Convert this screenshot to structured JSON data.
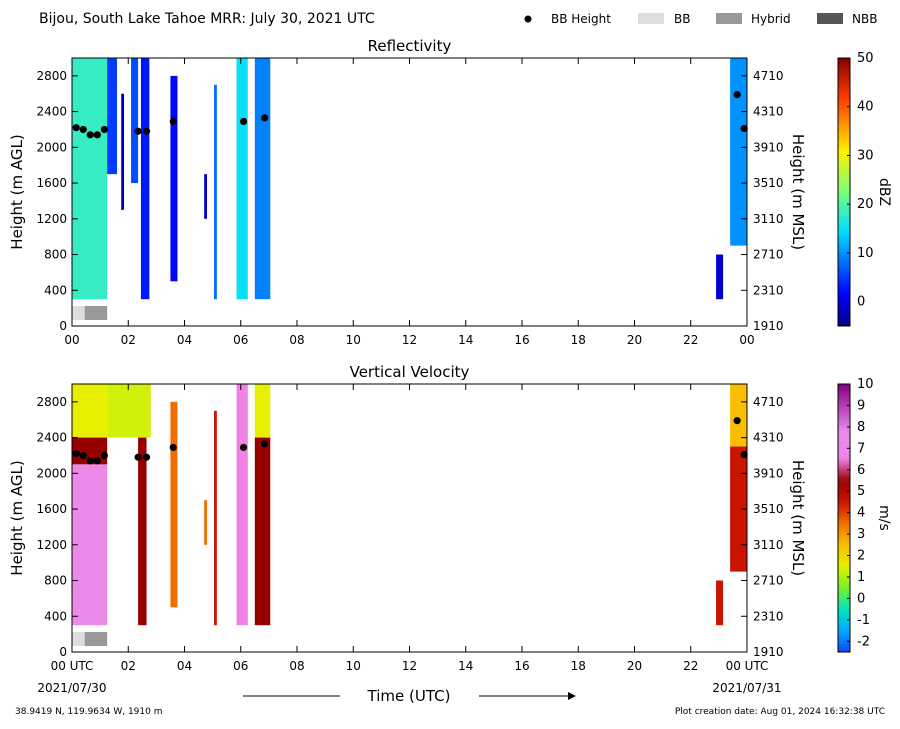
{
  "header": {
    "title": "Bijou, South Lake Tahoe MRR:  July 30, 2021 UTC",
    "legend": [
      {
        "label": "BB Height",
        "marker": "dot",
        "color": "#000000"
      },
      {
        "label": "BB",
        "marker": "box",
        "color": "#dddddd"
      },
      {
        "label": "Hybrid",
        "marker": "box",
        "color": "#999999"
      },
      {
        "label": "NBB",
        "marker": "box",
        "color": "#555555"
      }
    ]
  },
  "footer": {
    "location": "38.9419 N, 119.9634 W, 1910 m",
    "creation": "Plot creation date: Aug 01, 2024 16:32:38 UTC",
    "xlabel": "Time (UTC)",
    "start_date": "2021/07/30",
    "end_date": "2021/07/31"
  },
  "chart_data": [
    {
      "type": "heatmap",
      "title": "Reflectivity",
      "ylabel": "Height (m AGL)",
      "ylabel_right": "Height (m MSL)",
      "ylim": [
        0,
        3000
      ],
      "xlim": [
        0,
        24
      ],
      "x_ticks": [
        "00",
        "02",
        "04",
        "06",
        "08",
        "10",
        "12",
        "14",
        "16",
        "18",
        "20",
        "22",
        "00"
      ],
      "y_ticks": [
        0,
        400,
        800,
        1200,
        1600,
        2000,
        2400,
        2800
      ],
      "y_ticks_right": [
        "1910",
        "2310",
        "2710",
        "3110",
        "3510",
        "3910",
        "4310",
        "4710"
      ],
      "colorbar": {
        "label": "dBZ",
        "range": [
          -5,
          50
        ],
        "ticks": [
          "0",
          "10",
          "20",
          "30",
          "40",
          "50"
        ],
        "tick_values": [
          0,
          10,
          20,
          30,
          40,
          50
        ],
        "colormap": "jet"
      },
      "bb_height": [
        [
          0.15,
          2220
        ],
        [
          0.4,
          2200
        ],
        [
          0.65,
          2140
        ],
        [
          0.9,
          2140
        ],
        [
          1.15,
          2200
        ],
        [
          2.35,
          2180
        ],
        [
          2.65,
          2180
        ],
        [
          3.6,
          2290
        ],
        [
          6.1,
          2290
        ],
        [
          6.85,
          2330
        ],
        [
          23.65,
          2590
        ],
        [
          23.9,
          2210
        ]
      ],
      "bb_type": [
        {
          "start": 0,
          "end": 0.45,
          "type": "BB"
        },
        {
          "start": 0.45,
          "end": 1.25,
          "type": "Hybrid"
        }
      ],
      "echo_columns": [
        {
          "x": 0.0,
          "x2": 1.25,
          "y0": 300,
          "y1": 3000,
          "value": 18
        },
        {
          "x": 1.25,
          "x2": 1.6,
          "y0": 1700,
          "y1": 3000,
          "value": 5
        },
        {
          "x": 1.75,
          "x2": 1.85,
          "y0": 1300,
          "y1": 2600,
          "value": -2
        },
        {
          "x": 2.1,
          "x2": 2.35,
          "y0": 1600,
          "y1": 3000,
          "value": 6
        },
        {
          "x": 2.45,
          "x2": 2.75,
          "y0": 300,
          "y1": 3000,
          "value": 3
        },
        {
          "x": 3.5,
          "x2": 3.75,
          "y0": 500,
          "y1": 2800,
          "value": 2
        },
        {
          "x": 4.7,
          "x2": 4.8,
          "y0": 1200,
          "y1": 1700,
          "value": -1
        },
        {
          "x": 5.05,
          "x2": 5.15,
          "y0": 300,
          "y1": 2700,
          "value": 8
        },
        {
          "x": 5.85,
          "x2": 6.25,
          "y0": 300,
          "y1": 3000,
          "value": 15
        },
        {
          "x": 6.5,
          "x2": 7.05,
          "y0": 300,
          "y1": 3000,
          "value": 9
        },
        {
          "x": 22.9,
          "x2": 23.15,
          "y0": 300,
          "y1": 800,
          "value": -1
        },
        {
          "x": 23.4,
          "x2": 24.0,
          "y0": 900,
          "y1": 3000,
          "value": 10
        }
      ]
    },
    {
      "type": "heatmap",
      "title": "Vertical Velocity",
      "ylabel": "Height (m AGL)",
      "ylabel_right": "Height (m MSL)",
      "ylim": [
        0,
        3000
      ],
      "xlim": [
        0,
        24
      ],
      "x_ticks": [
        "00 UTC",
        "02",
        "04",
        "06",
        "08",
        "10",
        "12",
        "14",
        "16",
        "18",
        "20",
        "22",
        "00 UTC"
      ],
      "y_ticks": [
        0,
        400,
        800,
        1200,
        1600,
        2000,
        2400,
        2800
      ],
      "y_ticks_right": [
        "1910",
        "2310",
        "2710",
        "3110",
        "3510",
        "3910",
        "4310",
        "4710"
      ],
      "colorbar": {
        "label": "m/s",
        "range": [
          -2.5,
          10
        ],
        "ticks": [
          "-2",
          "-1",
          "0",
          "1",
          "2",
          "3",
          "4",
          "5",
          "6",
          "7",
          "8",
          "9",
          "10"
        ],
        "tick_values": [
          -2,
          -1,
          0,
          1,
          2,
          3,
          4,
          5,
          6,
          7,
          8,
          9,
          10
        ],
        "colormap": "velocity"
      },
      "bb_height": [
        [
          0.15,
          2220
        ],
        [
          0.4,
          2200
        ],
        [
          0.65,
          2140
        ],
        [
          0.9,
          2140
        ],
        [
          1.15,
          2200
        ],
        [
          2.35,
          2180
        ],
        [
          2.65,
          2180
        ],
        [
          3.6,
          2290
        ],
        [
          6.1,
          2290
        ],
        [
          6.85,
          2330
        ],
        [
          23.65,
          2590
        ],
        [
          23.9,
          2210
        ]
      ],
      "bb_type": [
        {
          "start": 0,
          "end": 0.45,
          "type": "BB"
        },
        {
          "start": 0.45,
          "end": 1.25,
          "type": "Hybrid"
        }
      ],
      "echo_columns": [
        {
          "x": 0.0,
          "x2": 1.25,
          "y0": 2400,
          "y1": 3000,
          "value": 1.5
        },
        {
          "x": 0.0,
          "x2": 1.25,
          "y0": 2100,
          "y1": 2400,
          "value": 5.5
        },
        {
          "x": 0.0,
          "x2": 1.25,
          "y0": 300,
          "y1": 2100,
          "value": 7.5
        },
        {
          "x": 1.25,
          "x2": 2.8,
          "y0": 2400,
          "y1": 3000,
          "value": 1.3
        },
        {
          "x": 2.35,
          "x2": 2.65,
          "y0": 300,
          "y1": 2400,
          "value": 5.5
        },
        {
          "x": 3.5,
          "x2": 3.75,
          "y0": 500,
          "y1": 2800,
          "value": 3.5
        },
        {
          "x": 4.7,
          "x2": 4.8,
          "y0": 1200,
          "y1": 1700,
          "value": 3.5
        },
        {
          "x": 5.05,
          "x2": 5.15,
          "y0": 300,
          "y1": 2700,
          "value": 4.5
        },
        {
          "x": 5.85,
          "x2": 6.25,
          "y0": 300,
          "y1": 3000,
          "value": 6.5
        },
        {
          "x": 6.5,
          "x2": 7.05,
          "y0": 2400,
          "y1": 3000,
          "value": 1.5
        },
        {
          "x": 6.5,
          "x2": 7.05,
          "y0": 300,
          "y1": 2400,
          "value": 5.5
        },
        {
          "x": 22.9,
          "x2": 23.15,
          "y0": 300,
          "y1": 800,
          "value": 4.5
        },
        {
          "x": 23.4,
          "x2": 24.0,
          "y0": 2300,
          "y1": 3000,
          "value": 2.5
        },
        {
          "x": 23.4,
          "x2": 24.0,
          "y0": 900,
          "y1": 2300,
          "value": 4.5
        }
      ]
    }
  ]
}
